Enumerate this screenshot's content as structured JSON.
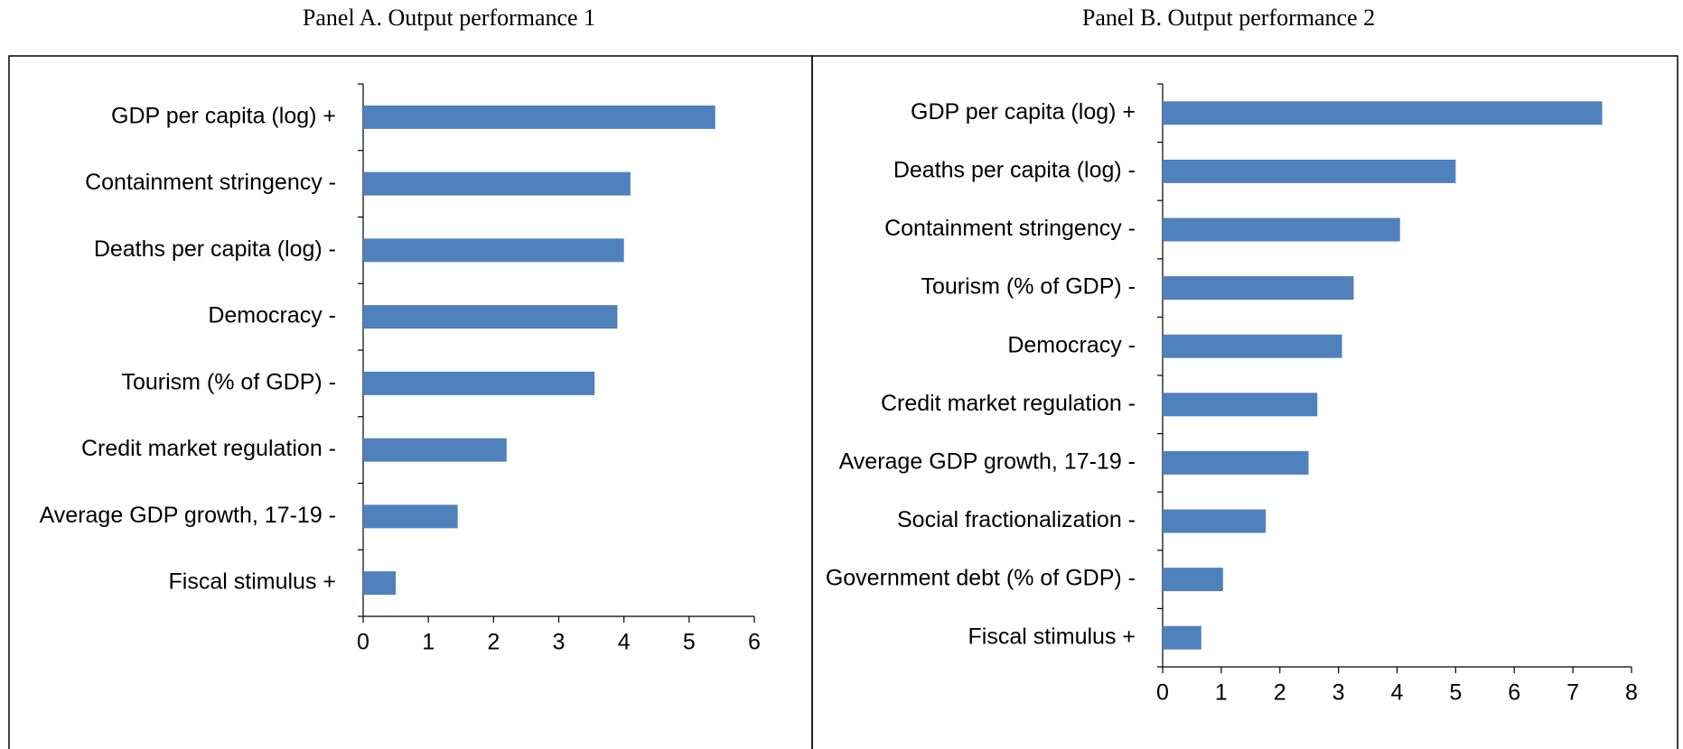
{
  "chart_data": [
    {
      "type": "bar",
      "orientation": "horizontal",
      "title": "Panel A. Output performance 1",
      "categories": [
        "GDP per capita (log) +",
        "Containment stringency -",
        "Deaths per capita (log) -",
        "Democracy -",
        "Tourism (% of GDP) -",
        "Credit market regulation -",
        "Average GDP growth, 17-19 -",
        "Fiscal stimulus +"
      ],
      "values": [
        5.4,
        4.1,
        4.0,
        3.9,
        3.55,
        2.2,
        1.45,
        0.5
      ],
      "color": "#4f81bd",
      "xlim": [
        0,
        6
      ],
      "xticks": [
        0,
        1,
        2,
        3,
        4,
        5,
        6
      ]
    },
    {
      "type": "bar",
      "orientation": "horizontal",
      "title": "Panel B. Output performance 2",
      "categories": [
        "GDP per capita (log) +",
        "Deaths per capita (log) -",
        "Containment stringency -",
        "Tourism (% of GDP) -",
        "Democracy -",
        "Credit market regulation -",
        "Average GDP growth, 17-19 -",
        "Social fractionalization -",
        "Government debt (% of GDP) -",
        "Fiscal stimulus +"
      ],
      "values": [
        7.5,
        5.0,
        4.05,
        3.26,
        3.06,
        2.64,
        2.49,
        1.76,
        1.03,
        0.66
      ],
      "color": "#4f81bd",
      "xlim": [
        0,
        8
      ],
      "xticks": [
        0,
        1,
        2,
        3,
        4,
        5,
        6,
        7,
        8
      ]
    }
  ]
}
